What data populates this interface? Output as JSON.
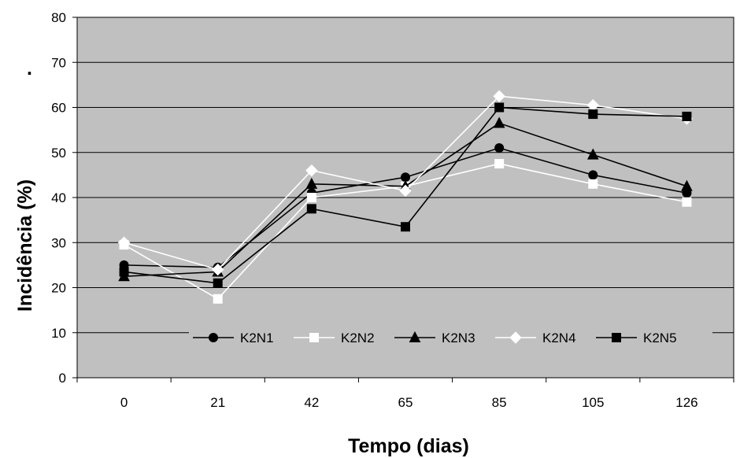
{
  "chart_data": {
    "type": "line",
    "title": "",
    "xlabel": "Tempo (dias)",
    "ylabel": "Incidência (%)",
    "stray_mark": ".",
    "categories": [
      "0",
      "21",
      "42",
      "65",
      "85",
      "105",
      "126"
    ],
    "ylim": [
      0,
      80
    ],
    "yticks": [
      "0",
      "10",
      "20",
      "30",
      "40",
      "50",
      "60",
      "70",
      "80"
    ],
    "grid": true,
    "plot_background": "#c0c0c0",
    "legend_position": "inside-bottom",
    "series": [
      {
        "name": "K2N1",
        "color": "#000000",
        "marker": "circle",
        "values": [
          25,
          24.5,
          41,
          44.5,
          51,
          45,
          41
        ]
      },
      {
        "name": "K2N2",
        "color": "#ffffff",
        "marker": "square",
        "values": [
          29.5,
          17.5,
          40,
          42.5,
          47.5,
          43,
          39
        ]
      },
      {
        "name": "K2N3",
        "color": "#000000",
        "marker": "triangle",
        "values": [
          22.5,
          23.5,
          43,
          42.5,
          56.5,
          49.5,
          42.5
        ]
      },
      {
        "name": "K2N4",
        "color": "#ffffff",
        "marker": "diamond",
        "values": [
          30,
          24,
          46,
          41.5,
          62.5,
          60.5,
          57.5
        ]
      },
      {
        "name": "K2N5",
        "color": "#000000",
        "marker": "square",
        "values": [
          23.5,
          21,
          37.5,
          33.5,
          60,
          58.5,
          58
        ]
      }
    ]
  }
}
